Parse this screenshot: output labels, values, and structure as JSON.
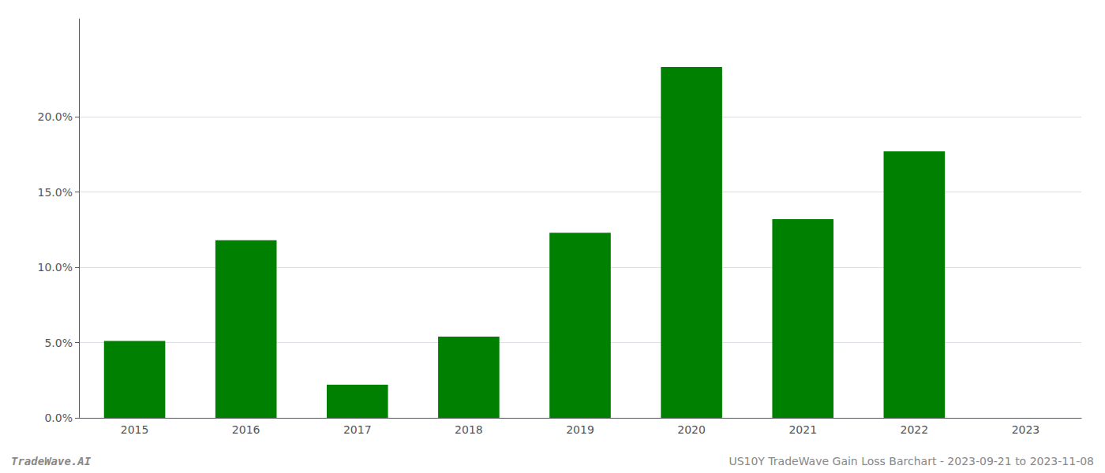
{
  "chart_data": {
    "type": "bar",
    "categories": [
      "2015",
      "2016",
      "2017",
      "2018",
      "2019",
      "2020",
      "2021",
      "2022",
      "2023"
    ],
    "values": [
      0.051,
      0.118,
      0.022,
      0.054,
      0.123,
      0.233,
      0.132,
      0.177,
      null
    ],
    "color": "#008000",
    "ylim": [
      0,
      0.265
    ],
    "yticks": [
      {
        "value": 0.0,
        "label": "0.0%"
      },
      {
        "value": 0.05,
        "label": "5.0%"
      },
      {
        "value": 0.1,
        "label": "10.0%"
      },
      {
        "value": 0.15,
        "label": "15.0%"
      },
      {
        "value": 0.2,
        "label": "20.0%"
      }
    ],
    "grid": true,
    "annotations": [
      "TradeWave.AI",
      "US10Y TradeWave Gain Loss Barchart - 2023-09-21 to 2023-11-08"
    ]
  }
}
